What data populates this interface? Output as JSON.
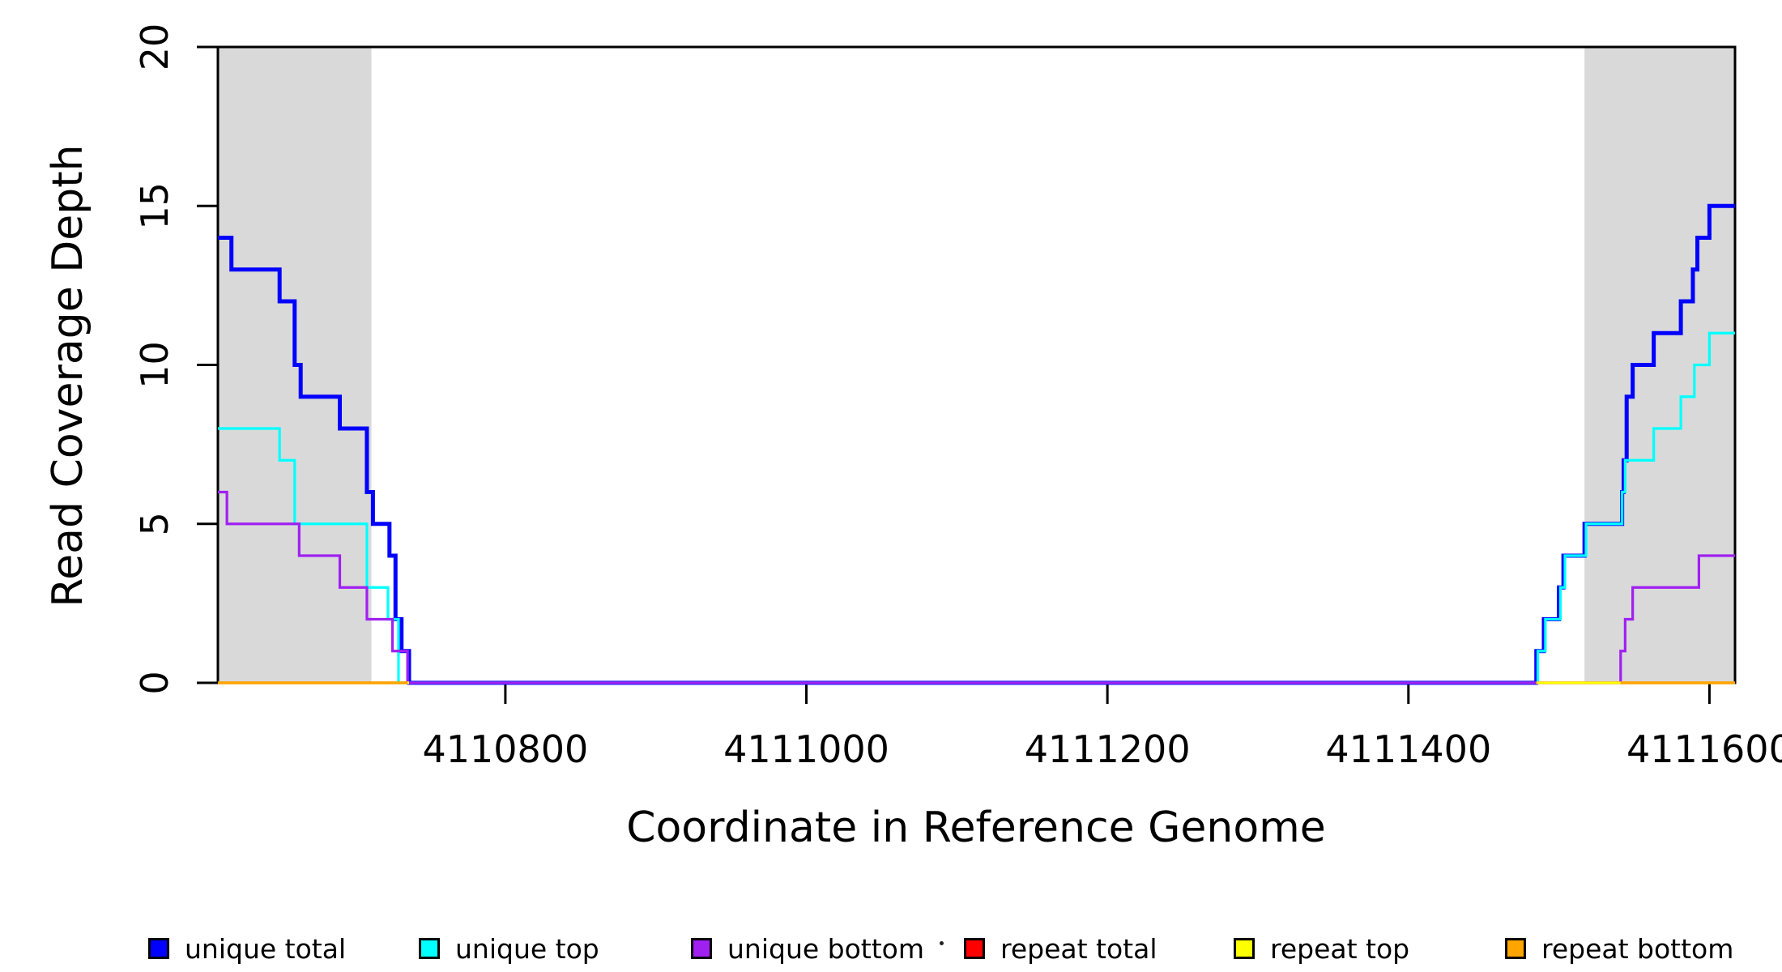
{
  "chart_data": {
    "type": "line",
    "subtype": "step",
    "title": "",
    "xlabel": "Coordinate in Reference Genome",
    "ylabel": "Read Coverage Depth",
    "xlim": [
      4110609,
      4111617
    ],
    "ylim": [
      0,
      20
    ],
    "xticks": [
      4110800,
      4111000,
      4111200,
      4111400,
      4111600
    ],
    "yticks": [
      0,
      5,
      10,
      15,
      20
    ],
    "grid": false,
    "background_color": "#ffffff",
    "shade_color": "#d9d9d9",
    "shaded_regions": [
      {
        "name": "repeat-region-left",
        "x0": 4110609,
        "x1": 4110711
      },
      {
        "name": "repeat-region-right",
        "x0": 4111517,
        "x1": 4111617
      }
    ],
    "series": [
      {
        "name": "unique total",
        "color": "#0000FF",
        "width": 5,
        "segments": [
          [
            [
              4110609,
              14
            ],
            [
              4110618,
              13
            ],
            [
              4110650,
              12
            ],
            [
              4110660,
              10
            ],
            [
              4110664,
              9
            ],
            [
              4110690,
              8
            ],
            [
              4110708,
              6
            ],
            [
              4110712,
              5
            ],
            [
              4110723,
              4
            ],
            [
              4110727,
              2
            ],
            [
              4110731,
              1
            ],
            [
              4110736,
              0
            ],
            [
              4111485,
              1
            ],
            [
              4111490,
              2
            ],
            [
              4111500,
              3
            ],
            [
              4111503,
              4
            ],
            [
              4111517,
              5
            ],
            [
              4111542,
              6
            ],
            [
              4111543,
              7
            ],
            [
              4111545,
              9
            ],
            [
              4111549,
              10
            ],
            [
              4111563,
              11
            ],
            [
              4111581,
              12
            ],
            [
              4111589,
              13
            ],
            [
              4111592,
              14
            ],
            [
              4111600,
              15
            ],
            [
              4111617,
              15
            ]
          ]
        ]
      },
      {
        "name": "unique top",
        "color": "#00FFFF",
        "width": 3.2,
        "segments": [
          [
            [
              4110609,
              8
            ],
            [
              4110650,
              7
            ],
            [
              4110660,
              5
            ],
            [
              4110708,
              3
            ],
            [
              4110722,
              2
            ],
            [
              4110729,
              0
            ],
            [
              4111486,
              1
            ],
            [
              4111491,
              2
            ],
            [
              4111501,
              3
            ],
            [
              4111504,
              4
            ],
            [
              4111518,
              5
            ],
            [
              4111542,
              6
            ],
            [
              4111544,
              7
            ],
            [
              4111563,
              8
            ],
            [
              4111581,
              9
            ],
            [
              4111590,
              10
            ],
            [
              4111600,
              11
            ],
            [
              4111617,
              11
            ]
          ]
        ]
      },
      {
        "name": "unique bottom",
        "color": "#A020F0",
        "width": 3.2,
        "segments": [
          [
            [
              4110609,
              6
            ],
            [
              4110615,
              5
            ],
            [
              4110663,
              4
            ],
            [
              4110690,
              3
            ],
            [
              4110708,
              2
            ],
            [
              4110725,
              1
            ],
            [
              4110735,
              0
            ],
            [
              4111541,
              1
            ],
            [
              4111544,
              2
            ],
            [
              4111549,
              3
            ],
            [
              4111593,
              4
            ],
            [
              4111617,
              4
            ]
          ]
        ]
      },
      {
        "name": "repeat total",
        "color": "#FF0000",
        "width": 3.2,
        "segments": [
          [
            [
              4110609,
              0
            ],
            [
              4110736,
              0
            ]
          ],
          [
            [
              4111485,
              0
            ],
            [
              4111617,
              0
            ]
          ]
        ]
      },
      {
        "name": "repeat top",
        "color": "#FFFF00",
        "width": 3.2,
        "segments": [
          [
            [
              4110609,
              0
            ],
            [
              4110736,
              0
            ]
          ],
          [
            [
              4111485,
              0
            ],
            [
              4111617,
              0
            ]
          ]
        ]
      },
      {
        "name": "repeat bottom",
        "color": "#FFA500",
        "width": 3.2,
        "segments": [
          [
            [
              4110609,
              0
            ],
            [
              4110735,
              0
            ]
          ],
          [
            [
              4111541,
              0
            ],
            [
              4111617,
              0
            ]
          ]
        ]
      }
    ],
    "legend": {
      "position": "bottom",
      "entries": [
        {
          "label": "unique total",
          "color": "#0000FF"
        },
        {
          "label": "unique top",
          "color": "#00FFFF"
        },
        {
          "label": "unique bottom",
          "color": "#A020F0"
        },
        {
          "label": "repeat total",
          "color": "#FF0000"
        },
        {
          "label": "repeat top",
          "color": "#FFFF00"
        },
        {
          "label": "repeat bottom",
          "color": "#FFA500"
        }
      ],
      "stray_mark": "."
    }
  }
}
